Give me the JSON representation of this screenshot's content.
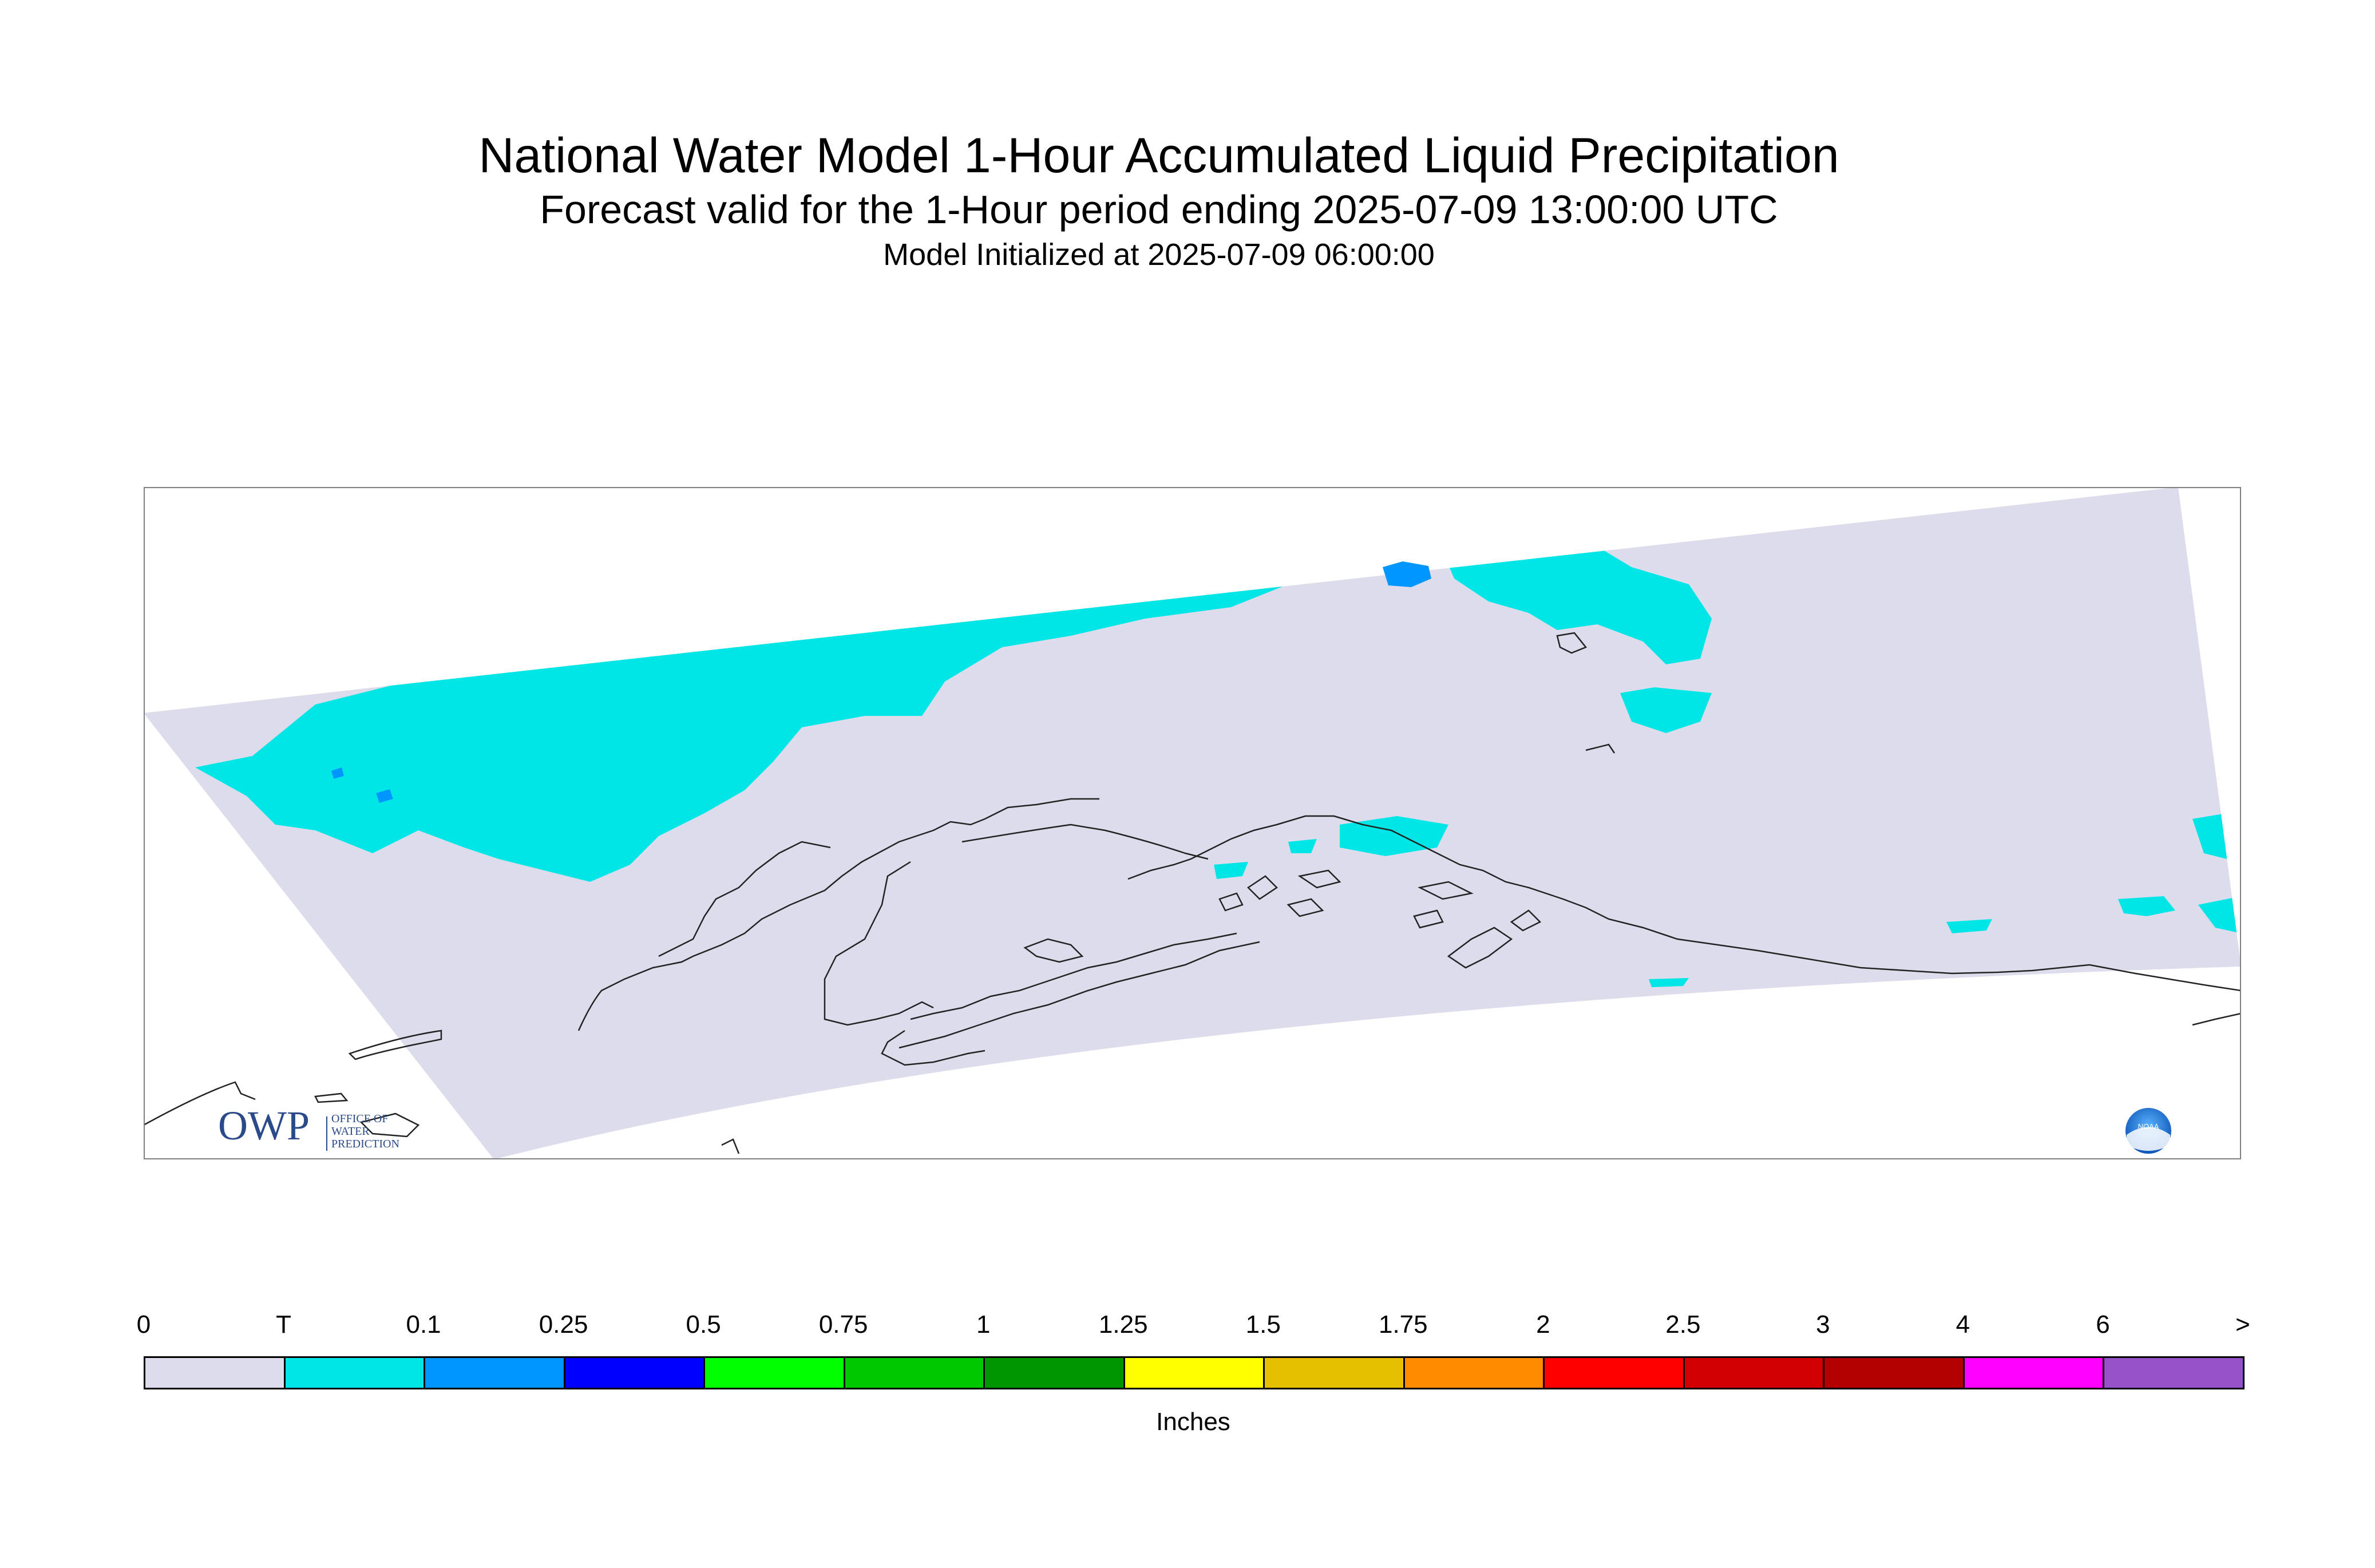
{
  "title": {
    "main": "National Water Model 1-Hour Accumulated Liquid Precipitation",
    "forecast": "Forecast valid for the 1-Hour period ending 2025-07-09 13:00:00 UTC",
    "initialized": "Model Initialized at 2025-07-09 06:00:00"
  },
  "map": {
    "region": "Alaska",
    "domain_color": "#dcdcec",
    "precip_colors": {
      "trace": "#00e6e6",
      "light": "#0096ff"
    },
    "logo_left": {
      "mark": "OWP",
      "text_lines": [
        "OFFICE OF",
        "WATER",
        "PREDICTION"
      ]
    },
    "logo_right": {
      "mark": "NOAA"
    }
  },
  "legend": {
    "labels": [
      "0",
      "T",
      "0.1",
      "0.25",
      "0.5",
      "0.75",
      "1",
      "1.25",
      "1.5",
      "1.75",
      "2",
      "2.5",
      "3",
      "4",
      "6",
      ">"
    ],
    "colors": [
      "#dcdcec",
      "#00e6e6",
      "#0096ff",
      "#0000ff",
      "#00ff00",
      "#00c800",
      "#009600",
      "#ffff00",
      "#e6c000",
      "#ff8c00",
      "#ff0000",
      "#d20000",
      "#b40000",
      "#ff00ff",
      "#9650c8"
    ],
    "units": "Inches"
  }
}
